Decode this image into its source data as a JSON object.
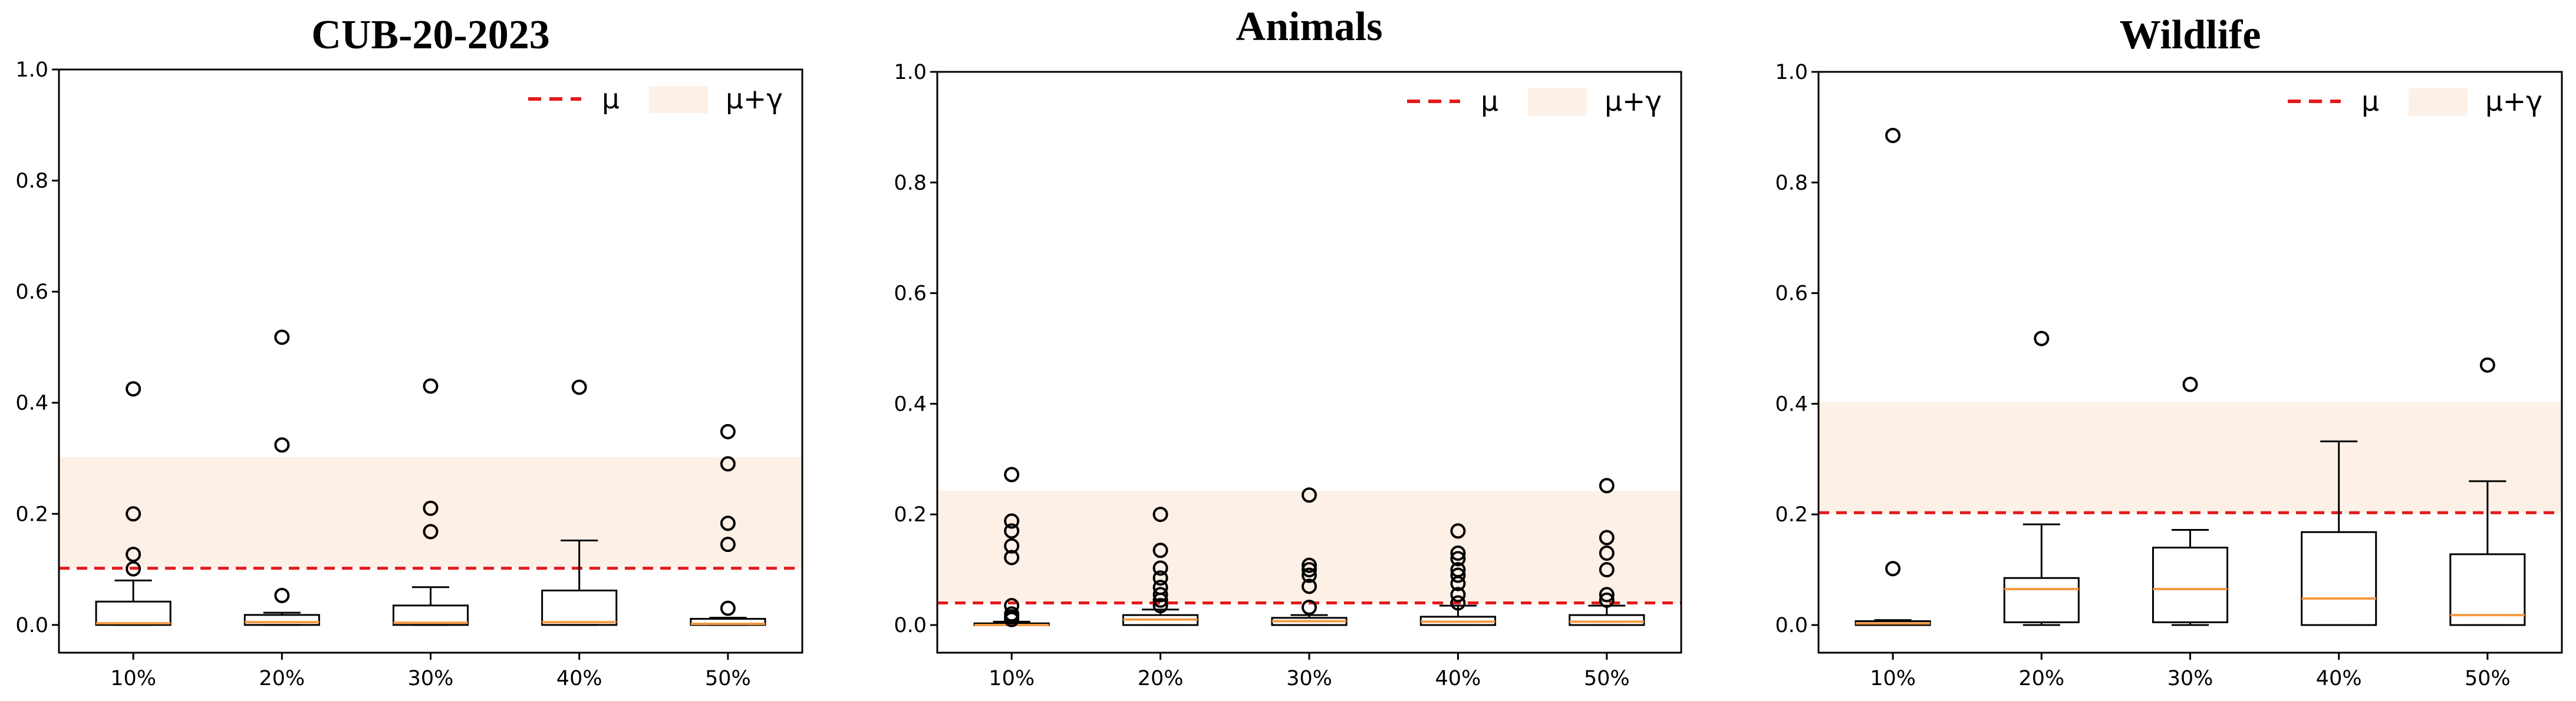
{
  "chart_data": [
    {
      "type": "boxplot",
      "title": "CUB-20-2023",
      "categories": [
        "10%",
        "20%",
        "30%",
        "40%",
        "50%"
      ],
      "ylim": [
        -0.05,
        1.0
      ],
      "yticks": [
        "0.0",
        "0.2",
        "0.4",
        "0.6",
        "0.8",
        "1.0"
      ],
      "mu": 0.102,
      "mu_plus_gamma": 0.302,
      "legend": {
        "mu_label": "μ",
        "band_label": "μ+γ",
        "placement": "top-right"
      },
      "boxes": [
        {
          "q1": 0.0,
          "median": 0.003,
          "q3": 0.042,
          "whisker_low": 0.0,
          "whisker_high": 0.08,
          "outliers": [
            0.101,
            0.127,
            0.2,
            0.425
          ]
        },
        {
          "q1": 0.0,
          "median": 0.005,
          "q3": 0.018,
          "whisker_low": 0.0,
          "whisker_high": 0.022,
          "outliers": [
            0.053,
            0.324,
            0.518
          ]
        },
        {
          "q1": 0.0,
          "median": 0.004,
          "q3": 0.035,
          "whisker_low": 0.0,
          "whisker_high": 0.068,
          "outliers": [
            0.168,
            0.21,
            0.43
          ]
        },
        {
          "q1": 0.0,
          "median": 0.005,
          "q3": 0.062,
          "whisker_low": 0.0,
          "whisker_high": 0.152,
          "outliers": [
            0.428
          ]
        },
        {
          "q1": 0.0,
          "median": 0.002,
          "q3": 0.011,
          "whisker_low": 0.0,
          "whisker_high": 0.013,
          "outliers": [
            0.03,
            0.145,
            0.183,
            0.29,
            0.348
          ]
        }
      ]
    },
    {
      "type": "boxplot",
      "title": "Animals",
      "categories": [
        "10%",
        "20%",
        "30%",
        "40%",
        "50%"
      ],
      "ylim": [
        -0.05,
        1.0
      ],
      "yticks": [
        "0.0",
        "0.2",
        "0.4",
        "0.6",
        "0.8",
        "1.0"
      ],
      "mu": 0.04,
      "mu_plus_gamma": 0.242,
      "legend": {
        "mu_label": "μ",
        "band_label": "μ+γ",
        "placement": "top-right"
      },
      "boxes": [
        {
          "q1": 0.0,
          "median": 0.0,
          "q3": 0.003,
          "whisker_low": 0.0,
          "whisker_high": 0.006,
          "outliers": [
            0.01,
            0.015,
            0.02,
            0.035,
            0.122,
            0.143,
            0.17,
            0.188,
            0.272
          ]
        },
        {
          "q1": 0.0,
          "median": 0.01,
          "q3": 0.018,
          "whisker_low": 0.0,
          "whisker_high": 0.028,
          "outliers": [
            0.035,
            0.045,
            0.055,
            0.068,
            0.085,
            0.103,
            0.135,
            0.2
          ]
        },
        {
          "q1": 0.0,
          "median": 0.007,
          "q3": 0.013,
          "whisker_low": 0.0,
          "whisker_high": 0.018,
          "outliers": [
            0.032,
            0.07,
            0.09,
            0.1,
            0.108,
            0.235
          ]
        },
        {
          "q1": 0.0,
          "median": 0.006,
          "q3": 0.015,
          "whisker_low": 0.0,
          "whisker_high": 0.035,
          "outliers": [
            0.04,
            0.055,
            0.075,
            0.09,
            0.1,
            0.12,
            0.13,
            0.17
          ]
        },
        {
          "q1": 0.0,
          "median": 0.006,
          "q3": 0.018,
          "whisker_low": 0.0,
          "whisker_high": 0.035,
          "outliers": [
            0.045,
            0.055,
            0.1,
            0.13,
            0.158,
            0.252
          ]
        }
      ]
    },
    {
      "type": "boxplot",
      "title": "Wildlife",
      "categories": [
        "10%",
        "20%",
        "30%",
        "40%",
        "50%"
      ],
      "ylim": [
        -0.05,
        1.0
      ],
      "yticks": [
        "0.0",
        "0.2",
        "0.4",
        "0.6",
        "0.8",
        "1.0"
      ],
      "mu": 0.203,
      "mu_plus_gamma": 0.403,
      "legend": {
        "mu_label": "μ",
        "band_label": "μ+γ",
        "placement": "top-right"
      },
      "boxes": [
        {
          "q1": 0.0,
          "median": 0.003,
          "q3": 0.007,
          "whisker_low": 0.0,
          "whisker_high": 0.009,
          "outliers": [
            0.102,
            0.885
          ]
        },
        {
          "q1": 0.005,
          "median": 0.065,
          "q3": 0.085,
          "whisker_low": 0.0,
          "whisker_high": 0.182,
          "outliers": [
            0.518
          ]
        },
        {
          "q1": 0.005,
          "median": 0.065,
          "q3": 0.14,
          "whisker_low": 0.0,
          "whisker_high": 0.172,
          "outliers": [
            0.435
          ]
        },
        {
          "q1": 0.0,
          "median": 0.048,
          "q3": 0.168,
          "whisker_low": 0.0,
          "whisker_high": 0.332,
          "outliers": []
        },
        {
          "q1": 0.0,
          "median": 0.018,
          "q3": 0.128,
          "whisker_low": 0.0,
          "whisker_high": 0.26,
          "outliers": [
            0.47
          ]
        }
      ]
    }
  ],
  "colors": {
    "mu_line": "#e41a1c",
    "band": "#fdf0e6",
    "median": "#f59a42",
    "box": "#000000"
  }
}
